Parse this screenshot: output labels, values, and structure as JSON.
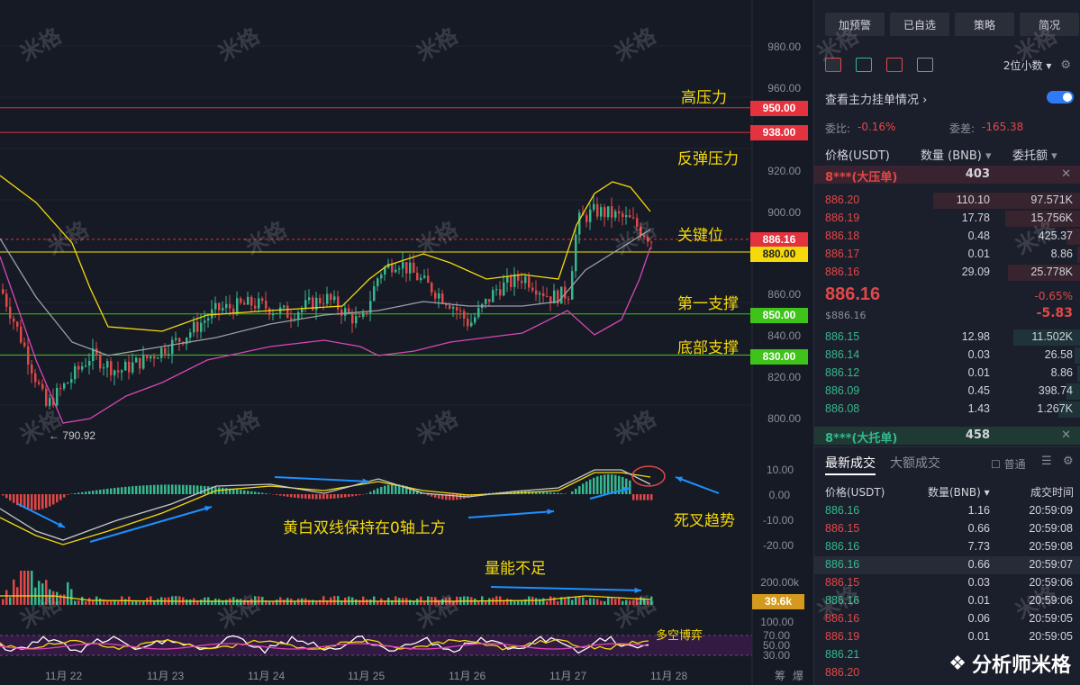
{
  "chart": {
    "price_axis": [
      "980.00",
      "960.00",
      "920.00",
      "900.00",
      "860.00",
      "840.00",
      "820.00",
      "800.00"
    ],
    "macd_axis": [
      "10.00",
      "0.00",
      "-10.00",
      "-20.00"
    ],
    "vol_axis": "200.00k",
    "rsi_axis": [
      "100.00",
      "70.00",
      "50.00",
      "30.00"
    ],
    "levels": [
      {
        "price": 950,
        "tag": "950.00",
        "color": "#e4323f",
        "label": "高压力"
      },
      {
        "price": 938,
        "tag": "938.00",
        "color": "#e4323f",
        "label": "反弹压力"
      },
      {
        "price": 886.16,
        "tag": "886.16",
        "color": "#e4323f",
        "label": "关键位"
      },
      {
        "price": 880,
        "tag": "880.00",
        "color": "#f5d90a",
        "label": ""
      },
      {
        "price": 850,
        "tag": "850.00",
        "color": "#3fc21a",
        "label": "第一支撑"
      },
      {
        "price": 830,
        "tag": "830.00",
        "color": "#3fc21a",
        "label": "底部支撑"
      }
    ],
    "low_marker": "← 790.92",
    "vol_tag": "39.6k",
    "annotations": {
      "macd_note": "黄白双线保持在0轴上方",
      "death_cross": "死叉趋势",
      "volume_note": "量能不足",
      "rsi_note": "多空博弈"
    },
    "dates": [
      "11月 22",
      "11月 23",
      "11月 24",
      "11月 25",
      "11月 26",
      "11月 27",
      "11月 28"
    ],
    "corner": [
      "筹",
      "爆"
    ],
    "watermark": "米格"
  },
  "panel": {
    "buttons": [
      "加预警",
      "已自选",
      "策略",
      "简况"
    ],
    "decimals": "2位小数",
    "main_orders_label": "查看主力挂单情况",
    "ratio_label": "委比:",
    "ratio_value": "-0.16%",
    "diff_label": "委差:",
    "diff_value": "-165.38",
    "headers": {
      "price": "价格(USDT)",
      "qty": "数量 (BNB)",
      "amount": "委托额"
    },
    "big_ask": {
      "label": "8***(大压单)",
      "value": "403"
    },
    "asks": [
      {
        "price": "886.20",
        "qty": "110.10",
        "amt": "97.571K",
        "fill": 0.55
      },
      {
        "price": "886.19",
        "qty": "17.78",
        "amt": "15.756K",
        "fill": 0.28
      },
      {
        "price": "886.18",
        "qty": "0.48",
        "amt": "425.37",
        "fill": 0.05
      },
      {
        "price": "886.17",
        "qty": "0.01",
        "amt": "8.86",
        "fill": 0.01
      },
      {
        "price": "886.16",
        "qty": "29.09",
        "amt": "25.778K",
        "fill": 0.27
      }
    ],
    "last_price": "886.16",
    "last_price_usd": "$886.16",
    "change_pct": "-0.65%",
    "change_abs": "-5.83",
    "bids": [
      {
        "price": "886.15",
        "qty": "12.98",
        "amt": "11.502K",
        "fill": 0.25
      },
      {
        "price": "886.14",
        "qty": "0.03",
        "amt": "26.58",
        "fill": 0.02
      },
      {
        "price": "886.12",
        "qty": "0.01",
        "amt": "8.86",
        "fill": 0.01
      },
      {
        "price": "886.09",
        "qty": "0.45",
        "amt": "398.74",
        "fill": 0.05
      },
      {
        "price": "886.08",
        "qty": "1.43",
        "amt": "1.267K",
        "fill": 0.08
      }
    ],
    "big_bid": {
      "label": "8***(大托单)",
      "value": "458"
    },
    "tabs": [
      "最新成交",
      "大额成交"
    ],
    "normal_label": "普通",
    "trade_headers": {
      "price": "价格(USDT)",
      "qty": "数量(BNB)",
      "time": "成交时间"
    },
    "trades": [
      {
        "price": "886.16",
        "qty": "1.16",
        "time": "20:59:09",
        "side": "green"
      },
      {
        "price": "886.15",
        "qty": "0.66",
        "time": "20:59:08",
        "side": "red"
      },
      {
        "price": "886.16",
        "qty": "7.73",
        "time": "20:59:08",
        "side": "green"
      },
      {
        "price": "886.16",
        "qty": "0.66",
        "time": "20:59:07",
        "side": "green"
      },
      {
        "price": "886.15",
        "qty": "0.03",
        "time": "20:59:06",
        "side": "red"
      },
      {
        "price": "886.16",
        "qty": "0.01",
        "time": "20:59:06",
        "side": "green"
      },
      {
        "price": "886.16",
        "qty": "0.06",
        "time": "20:59:05",
        "side": "red"
      },
      {
        "price": "886.19",
        "qty": "0.01",
        "time": "20:59:05",
        "side": "red"
      },
      {
        "price": "886.21",
        "qty": "",
        "time": "",
        "side": "green"
      },
      {
        "price": "886.20",
        "qty": "",
        "time": "",
        "side": "red"
      }
    ],
    "brand": "分析师米格",
    "colors": {
      "up": "#37b78d",
      "down": "#e04848",
      "accent": "#2f7bf5"
    }
  }
}
